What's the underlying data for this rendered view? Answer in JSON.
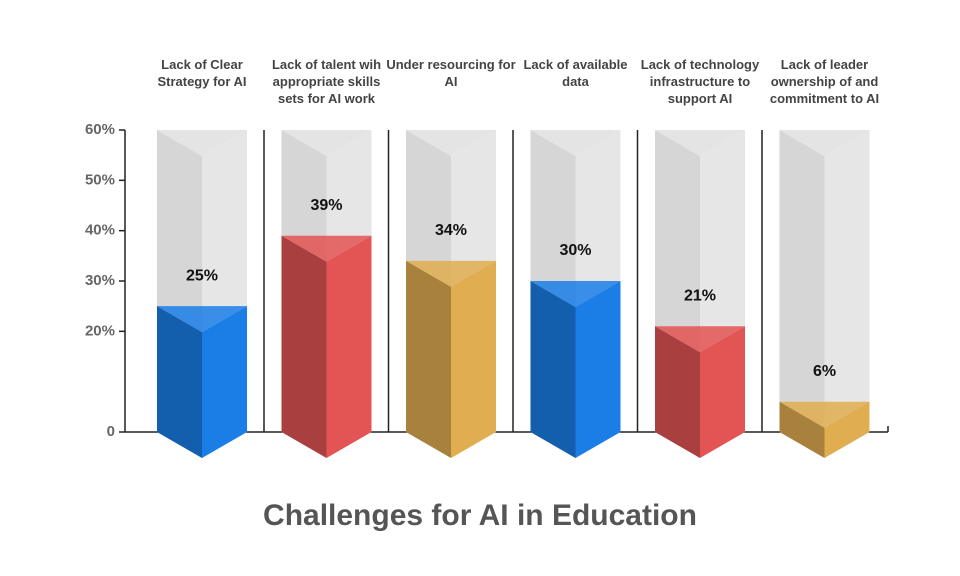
{
  "chart_data": {
    "type": "bar3d",
    "title": "Challenges for AI in Education",
    "categories": [
      "Lack of Clear Strategy for AI",
      "Lack of talent wih appropriate skills sets for AI work",
      "Under resourcing for AI",
      "Lack of available data",
      "Lack of technology infrastructure to support  AI",
      "Lack of leader ownership of and commitment to AI"
    ],
    "values": [
      25,
      39,
      34,
      30,
      21,
      6
    ],
    "value_labels": [
      "25%",
      "39%",
      "34%",
      "30%",
      "21%",
      "6%"
    ],
    "colors": [
      "#1a7ee6",
      "#e35454",
      "#e0ad50",
      "#1a7ee6",
      "#e35454",
      "#e0ad50"
    ],
    "ylim": [
      0,
      60
    ],
    "yticks": [
      0,
      {
        "value": 20,
        "label": "20%"
      },
      {
        "value": 30,
        "label": "30%"
      },
      {
        "value": 40,
        "label": "40%"
      },
      {
        "value": 50,
        "label": "50%"
      },
      {
        "value": 60,
        "label": "60%"
      }
    ]
  }
}
